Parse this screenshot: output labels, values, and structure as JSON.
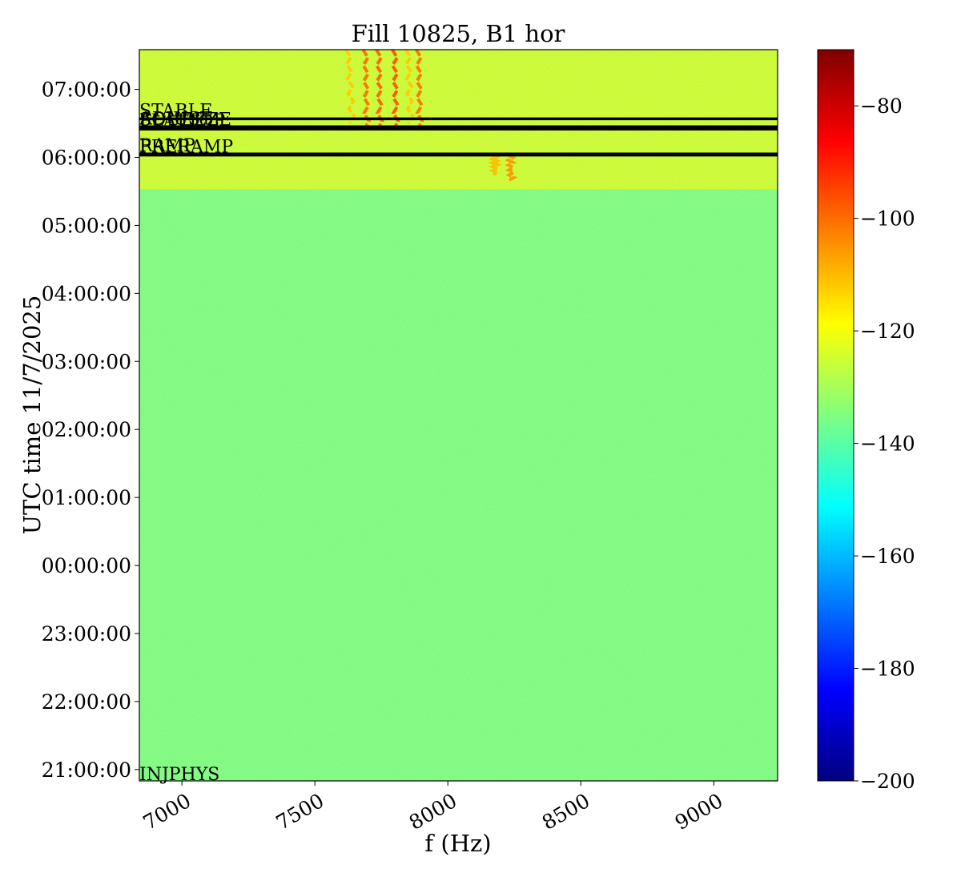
{
  "chart_data": {
    "type": "heatmap",
    "title": "Fill 10825, B1 hor",
    "xlabel": "f (Hz)",
    "ylabel": "UTC time 11/7/2025",
    "x_range": [
      6840,
      9240
    ],
    "y_range": [
      "20:50:00",
      "07:35:00"
    ],
    "x_ticks": [
      {
        "value": 7000,
        "label": "7000"
      },
      {
        "value": 7500,
        "label": "7500"
      },
      {
        "value": 8000,
        "label": "8000"
      },
      {
        "value": 8500,
        "label": "8500"
      },
      {
        "value": 9000,
        "label": "9000"
      }
    ],
    "y_ticks": [
      {
        "value": "21:00:00",
        "label": "21:00:00"
      },
      {
        "value": "22:00:00",
        "label": "22:00:00"
      },
      {
        "value": "23:00:00",
        "label": "23:00:00"
      },
      {
        "value": "00:00:00",
        "label": "00:00:00"
      },
      {
        "value": "01:00:00",
        "label": "01:00:00"
      },
      {
        "value": "02:00:00",
        "label": "02:00:00"
      },
      {
        "value": "03:00:00",
        "label": "03:00:00"
      },
      {
        "value": "04:00:00",
        "label": "04:00:00"
      },
      {
        "value": "05:00:00",
        "label": "05:00:00"
      },
      {
        "value": "06:00:00",
        "label": "06:00:00"
      },
      {
        "value": "07:00:00",
        "label": "07:00:00"
      }
    ],
    "colorbar": {
      "colormap": "jet",
      "range": [
        -200,
        -70
      ],
      "ticks": [
        {
          "value": -80,
          "label": "−80"
        },
        {
          "value": -100,
          "label": "−100"
        },
        {
          "value": -120,
          "label": "−120"
        },
        {
          "value": -140,
          "label": "−140"
        },
        {
          "value": -160,
          "label": "−160"
        },
        {
          "value": -180,
          "label": "−180"
        },
        {
          "value": -200,
          "label": "−200"
        }
      ]
    },
    "regions": [
      {
        "from": "20:50:00",
        "to": "05:32:00",
        "level": -135
      },
      {
        "from": "05:32:00",
        "to": "07:35:00",
        "level": -125
      }
    ],
    "phase_markers": [
      {
        "time": "20:50:00",
        "label": "INJPHYS",
        "draw_line": false
      },
      {
        "time": "06:02:00",
        "label": "PRERAMP",
        "draw_line": true
      },
      {
        "time": "06:03:00",
        "label": "RAMP",
        "draw_line": true
      },
      {
        "time": "06:25:00",
        "label": "FLATTOP",
        "draw_line": true
      },
      {
        "time": "06:26:00",
        "label": "SQUEEZE",
        "draw_line": true
      },
      {
        "time": "06:27:00",
        "label": "ADJUST",
        "draw_line": true
      },
      {
        "time": "06:34:00",
        "label": "STABLE",
        "draw_line": true
      }
    ],
    "lines": [
      {
        "f_start": 7695,
        "f_end": 7690,
        "t_from": "06:25:00",
        "t_to": "07:35:00",
        "level": -100
      },
      {
        "f_start": 7745,
        "f_end": 7740,
        "t_from": "06:25:00",
        "t_to": "07:35:00",
        "level": -98
      },
      {
        "f_start": 7805,
        "f_end": 7800,
        "t_from": "06:25:00",
        "t_to": "07:35:00",
        "level": -96
      },
      {
        "f_start": 7895,
        "f_end": 7890,
        "t_from": "06:25:00",
        "t_to": "07:35:00",
        "level": -100
      },
      {
        "f_start": 7640,
        "f_end": 7625,
        "t_from": "06:30:00",
        "t_to": "07:35:00",
        "level": -112
      },
      {
        "f_start": 7860,
        "f_end": 7850,
        "t_from": "06:30:00",
        "t_to": "07:35:00",
        "level": -112
      },
      {
        "f_start": 8240,
        "f_end": 8235,
        "t_from": "05:40:00",
        "t_to": "06:02:00",
        "level": -105
      },
      {
        "f_start": 8180,
        "f_end": 8175,
        "t_from": "05:45:00",
        "t_to": "06:02:00",
        "level": -110
      }
    ]
  }
}
